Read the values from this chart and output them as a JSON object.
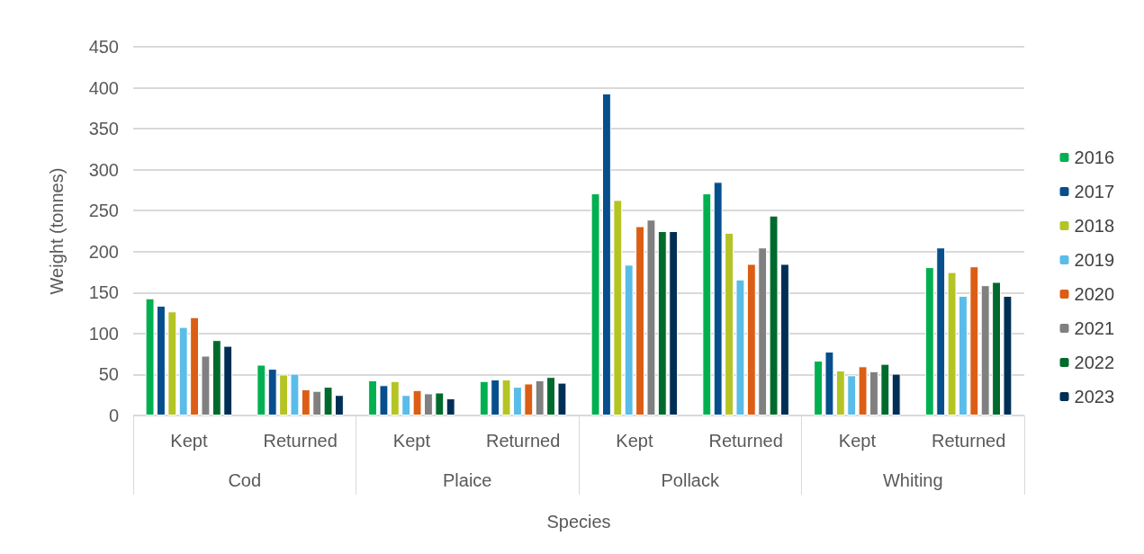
{
  "chart_data": {
    "type": "bar",
    "xlabel": "Species",
    "ylabel": "Weight (tonnes)",
    "categories": [
      "Kept",
      "Returned",
      "Kept",
      "Returned",
      "Kept",
      "Returned",
      "Kept",
      "Returned"
    ],
    "annotations": [
      "Cod",
      "Plaice",
      "Pollack",
      "Whiting"
    ],
    "series": [
      {
        "name": "2016",
        "color": "#00b050",
        "values": [
          143,
          62,
          43,
          42,
          271,
          271,
          67,
          181
        ]
      },
      {
        "name": "2017",
        "color": "#064e8c",
        "values": [
          134,
          57,
          37,
          44,
          393,
          285,
          78,
          205
        ]
      },
      {
        "name": "2018",
        "color": "#b4c424",
        "values": [
          127,
          50,
          42,
          44,
          263,
          223,
          55,
          175
        ]
      },
      {
        "name": "2019",
        "color": "#5abce8",
        "values": [
          108,
          51,
          25,
          35,
          184,
          166,
          49,
          146
        ]
      },
      {
        "name": "2020",
        "color": "#dc5e14",
        "values": [
          120,
          32,
          31,
          39,
          231,
          185,
          60,
          182
        ]
      },
      {
        "name": "2021",
        "color": "#808080",
        "values": [
          73,
          30,
          27,
          43,
          239,
          205,
          54,
          159
        ]
      },
      {
        "name": "2022",
        "color": "#006a2c",
        "values": [
          92,
          35,
          28,
          47,
          225,
          244,
          63,
          163
        ]
      },
      {
        "name": "2023",
        "color": "#002f56",
        "values": [
          85,
          25,
          21,
          40,
          225,
          185,
          51,
          146
        ]
      }
    ],
    "ylim": [
      0,
      450
    ],
    "yticks": [
      0,
      50,
      100,
      150,
      200,
      250,
      300,
      350,
      400,
      450
    ],
    "grid": "y",
    "legend": "right"
  }
}
